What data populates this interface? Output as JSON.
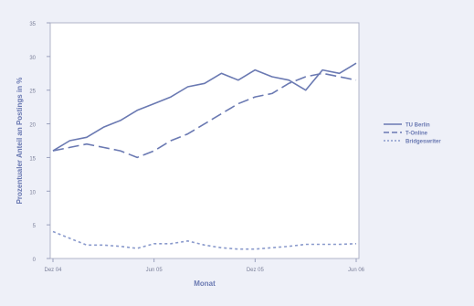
{
  "chart_data": {
    "type": "line",
    "title": "",
    "xlabel": "Monat",
    "ylabel": "Prozentualer Anteil an Postings in %",
    "x_ticks": [
      "Dez 04",
      "Jun 05",
      "Dez 05",
      "Jun 06"
    ],
    "x_tick_index": [
      0,
      6,
      12,
      18
    ],
    "ylim": [
      0,
      35
    ],
    "y_ticks": [
      0,
      5,
      10,
      15,
      20,
      25,
      30,
      35
    ],
    "grid": false,
    "legend_position": "right",
    "x": [
      0,
      1,
      2,
      3,
      4,
      5,
      6,
      7,
      8,
      9,
      10,
      11,
      12,
      13,
      14,
      15,
      16,
      17,
      18
    ],
    "series": [
      {
        "name": "TU Berlin",
        "style": "solid",
        "color": "#6a79b2",
        "values": [
          16,
          17.5,
          18,
          19.5,
          20.5,
          22,
          23,
          24,
          25.5,
          26,
          27.5,
          26.5,
          28,
          27,
          26.5,
          25,
          28,
          27.5,
          29
        ]
      },
      {
        "name": "T-Online",
        "style": "dashed",
        "color": "#6a79b2",
        "values": [
          16,
          16.5,
          17,
          16.5,
          16,
          15,
          16,
          17.5,
          18.5,
          20,
          21.5,
          23,
          24,
          24.5,
          26,
          27,
          27.5,
          27,
          26.5
        ]
      },
      {
        "name": "Bridgeswriter",
        "style": "dotted",
        "color": "#8a9acc",
        "values": [
          4,
          3,
          2,
          2,
          1.8,
          1.5,
          2.2,
          2.2,
          2.6,
          2,
          1.6,
          1.4,
          1.4,
          1.6,
          1.8,
          2.1,
          2.1,
          2.1,
          2.2
        ]
      }
    ]
  }
}
